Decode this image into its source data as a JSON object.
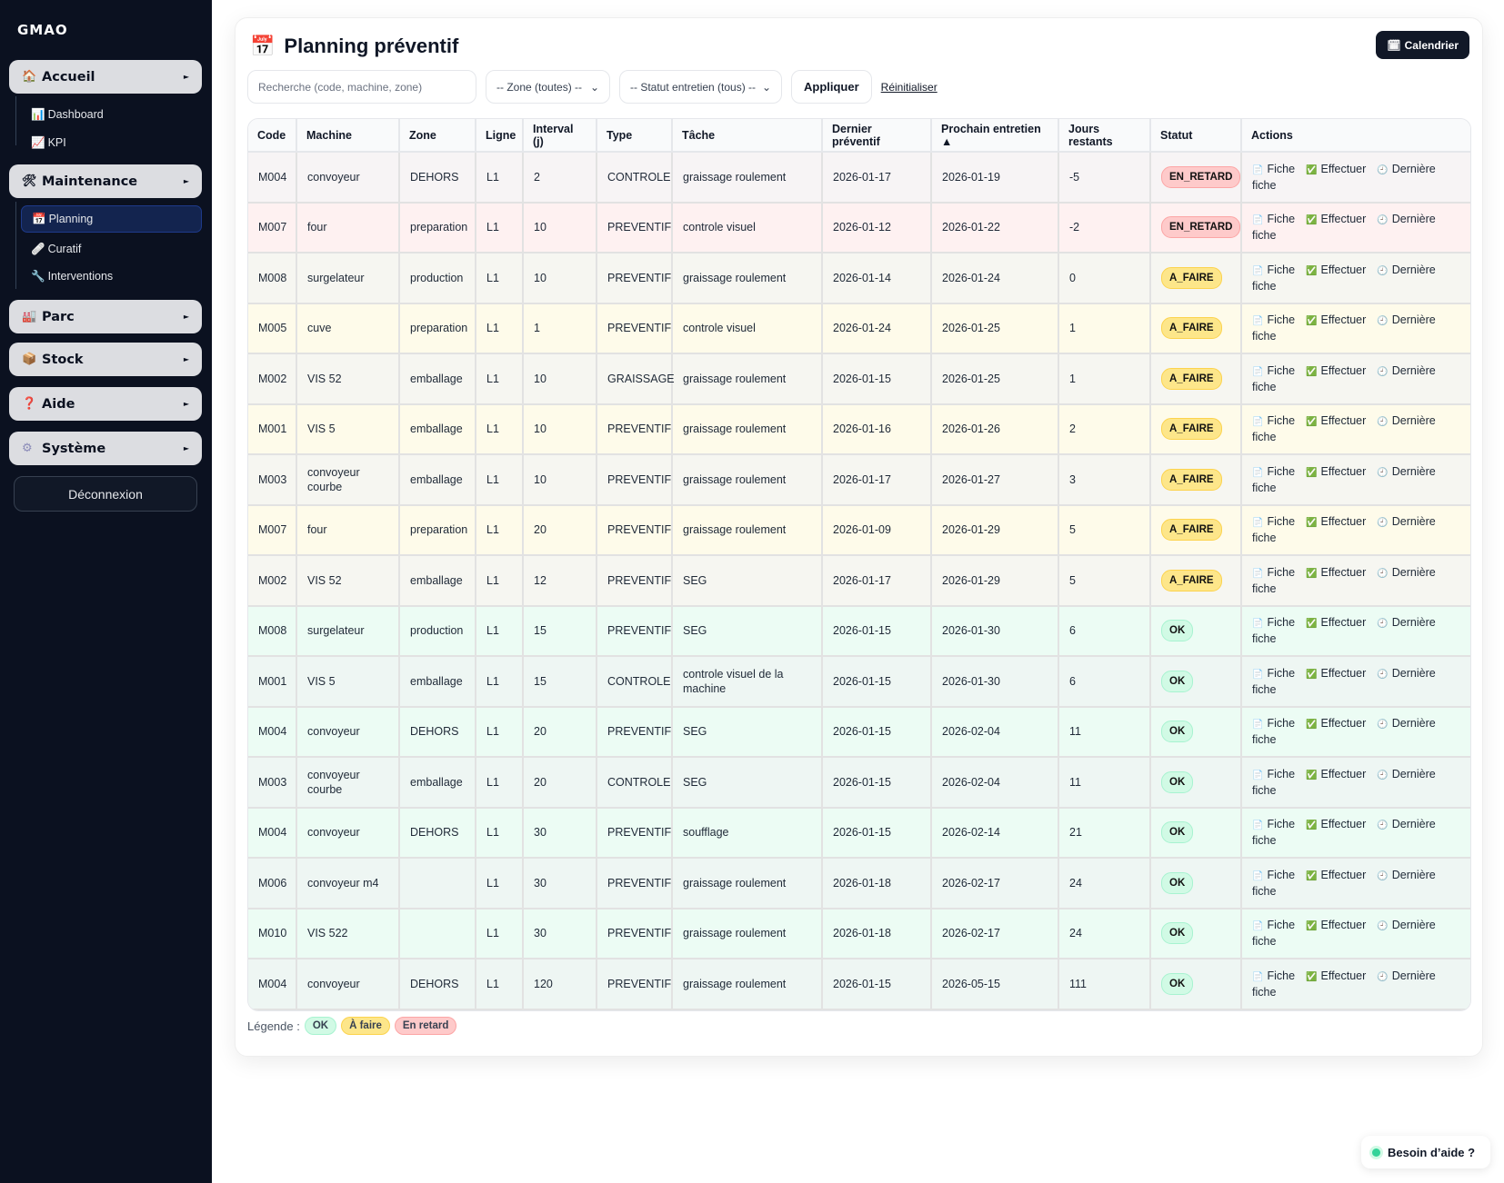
{
  "sidebar": {
    "brand": "GMAO",
    "groups": [
      {
        "label": "Accueil",
        "icon": "🏠",
        "icon_name": "house-icon"
      },
      {
        "label": "Maintenance",
        "icon": "🛠",
        "icon_name": "tools-icon"
      },
      {
        "label": "Parc",
        "icon": "🏭",
        "icon_name": "factory-icon"
      },
      {
        "label": "Stock",
        "icon": "📦",
        "icon_name": "package-icon"
      },
      {
        "label": "Aide",
        "icon": "❓",
        "icon_name": "question-icon"
      },
      {
        "label": "Système",
        "icon": "⚙",
        "icon_name": "gear-icon"
      }
    ],
    "accueil_items": [
      {
        "label": "Dashboard",
        "icon": "📊"
      },
      {
        "label": "KPI",
        "icon": "📈"
      }
    ],
    "maintenance_items": [
      {
        "label": "Planning",
        "icon": "📅",
        "active": true
      },
      {
        "label": "Curatif",
        "icon": "🩹"
      },
      {
        "label": "Interventions",
        "icon": "🔧"
      }
    ],
    "logout": "Déconnexion"
  },
  "page": {
    "title": "Planning préventif",
    "title_icon": "📅",
    "calendar_button": "Calendrier",
    "calendar_icon": "🗓"
  },
  "filters": {
    "search_placeholder": "Recherche (code, machine, zone)",
    "zone": "-- Zone (toutes) --",
    "statut": "-- Statut entretien (tous) --",
    "apply": "Appliquer",
    "reset": "Réinitialiser"
  },
  "table": {
    "headers": [
      "Code",
      "Machine",
      "Zone",
      "Ligne",
      "Interval (j)",
      "Type",
      "Tâche",
      "Dernier préventif",
      "Prochain entretien ▲",
      "Jours restants",
      "Statut",
      "Actions"
    ],
    "actions": {
      "fiche": "Fiche",
      "effectuer": "Effectuer",
      "derniere": "Dernière fiche"
    },
    "rows": [
      [
        "M004",
        "convoyeur",
        "DEHORS",
        "L1",
        "2",
        "CONTROLE",
        "graissage roulement",
        "2026-01-17",
        "2026-01-19",
        "-5",
        "EN_RETARD"
      ],
      [
        "M007",
        "four",
        "preparation",
        "L1",
        "10",
        "PREVENTIF",
        "controle visuel",
        "2026-01-12",
        "2026-01-22",
        "-2",
        "EN_RETARD"
      ],
      [
        "M008",
        "surgelateur",
        "production",
        "L1",
        "10",
        "PREVENTIF",
        "graissage roulement",
        "2026-01-14",
        "2026-01-24",
        "0",
        "A_FAIRE"
      ],
      [
        "M005",
        "cuve",
        "preparation",
        "L1",
        "1",
        "PREVENTIF",
        "controle visuel",
        "2026-01-24",
        "2026-01-25",
        "1",
        "A_FAIRE"
      ],
      [
        "M002",
        "VIS 52",
        "emballage",
        "L1",
        "10",
        "GRAISSAGE",
        "graissage roulement",
        "2026-01-15",
        "2026-01-25",
        "1",
        "A_FAIRE"
      ],
      [
        "M001",
        "VIS 5",
        "emballage",
        "L1",
        "10",
        "PREVENTIF",
        "graissage roulement",
        "2026-01-16",
        "2026-01-26",
        "2",
        "A_FAIRE"
      ],
      [
        "M003",
        "convoyeur courbe",
        "emballage",
        "L1",
        "10",
        "PREVENTIF",
        "graissage roulement",
        "2026-01-17",
        "2026-01-27",
        "3",
        "A_FAIRE"
      ],
      [
        "M007",
        "four",
        "preparation",
        "L1",
        "20",
        "PREVENTIF",
        "graissage roulement",
        "2026-01-09",
        "2026-01-29",
        "5",
        "A_FAIRE"
      ],
      [
        "M002",
        "VIS 52",
        "emballage",
        "L1",
        "12",
        "PREVENTIF",
        "SEG",
        "2026-01-17",
        "2026-01-29",
        "5",
        "A_FAIRE"
      ],
      [
        "M008",
        "surgelateur",
        "production",
        "L1",
        "15",
        "PREVENTIF",
        "SEG",
        "2026-01-15",
        "2026-01-30",
        "6",
        "OK"
      ],
      [
        "M001",
        "VIS 5",
        "emballage",
        "L1",
        "15",
        "CONTROLE",
        "controle visuel de la machine",
        "2026-01-15",
        "2026-01-30",
        "6",
        "OK"
      ],
      [
        "M004",
        "convoyeur",
        "DEHORS",
        "L1",
        "20",
        "PREVENTIF",
        "SEG",
        "2026-01-15",
        "2026-02-04",
        "11",
        "OK"
      ],
      [
        "M003",
        "convoyeur courbe",
        "emballage",
        "L1",
        "20",
        "CONTROLE",
        "SEG",
        "2026-01-15",
        "2026-02-04",
        "11",
        "OK"
      ],
      [
        "M004",
        "convoyeur",
        "DEHORS",
        "L1",
        "30",
        "PREVENTIF",
        "soufflage",
        "2026-01-15",
        "2026-02-14",
        "21",
        "OK"
      ],
      [
        "M006",
        "convoyeur m4",
        "",
        "L1",
        "30",
        "PREVENTIF",
        "graissage roulement",
        "2026-01-18",
        "2026-02-17",
        "24",
        "OK"
      ],
      [
        "M010",
        "VIS 522",
        "",
        "L1",
        "30",
        "PREVENTIF",
        "graissage roulement",
        "2026-01-18",
        "2026-02-17",
        "24",
        "OK"
      ],
      [
        "M004",
        "convoyeur",
        "DEHORS",
        "L1",
        "120",
        "PREVENTIF",
        "graissage roulement",
        "2026-01-15",
        "2026-05-15",
        "111",
        "OK"
      ]
    ]
  },
  "legend": {
    "label": "Légende :",
    "ok": "OK",
    "faire": "À faire",
    "retard": "En retard"
  },
  "help": {
    "label": "Besoin d’aide ?"
  },
  "colors": {
    "sidebar_bg": "#0b1120",
    "ok": "#d1fae5",
    "a_faire": "#fde68a",
    "en_retard": "#fecaca",
    "active_item": "#13244f"
  }
}
